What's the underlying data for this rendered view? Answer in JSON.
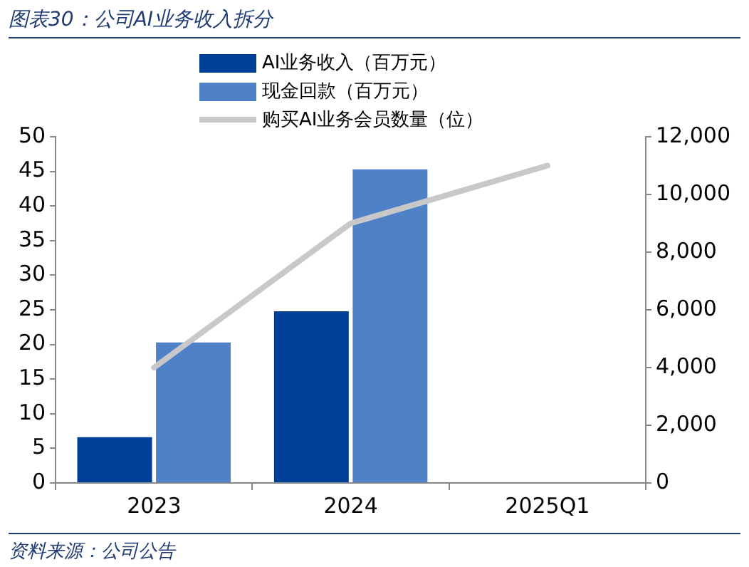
{
  "chart_data": {
    "type": "bar",
    "title": "图表30：公司AI业务收入拆分",
    "categories": [
      "2023",
      "2024",
      "2025Q1"
    ],
    "series": [
      {
        "name": "AI业务收入（百万元）",
        "color": "#003f98",
        "values": [
          6.6,
          24.8,
          null
        ]
      },
      {
        "name": "现金回款（百万元）",
        "color": "#4f81c7",
        "values": [
          20.3,
          45.3,
          null
        ]
      },
      {
        "name": "购买AI业务会员数量（位）",
        "type": "line",
        "axis": "y2",
        "color": "#c8c8c8",
        "values": [
          4000,
          9000,
          11000
        ]
      }
    ],
    "ylim": [
      0,
      50
    ],
    "yticks": [
      0,
      5,
      10,
      15,
      20,
      25,
      30,
      35,
      40,
      45,
      50
    ],
    "y2lim": [
      0,
      12000
    ],
    "y2ticks": [
      0,
      {
        "value": 2000,
        "label": "2,000"
      },
      {
        "value": 4000,
        "label": "4,000"
      },
      {
        "value": 6000,
        "label": "6,000"
      },
      {
        "value": 8000,
        "label": "8,000"
      },
      {
        "value": 10000,
        "label": "10,000"
      },
      {
        "value": 12000,
        "label": "12,000"
      }
    ],
    "grid": false,
    "legend": "top",
    "marker": "none",
    "line_style": "solid",
    "annotations": [
      "资料来源：公司公告"
    ]
  }
}
